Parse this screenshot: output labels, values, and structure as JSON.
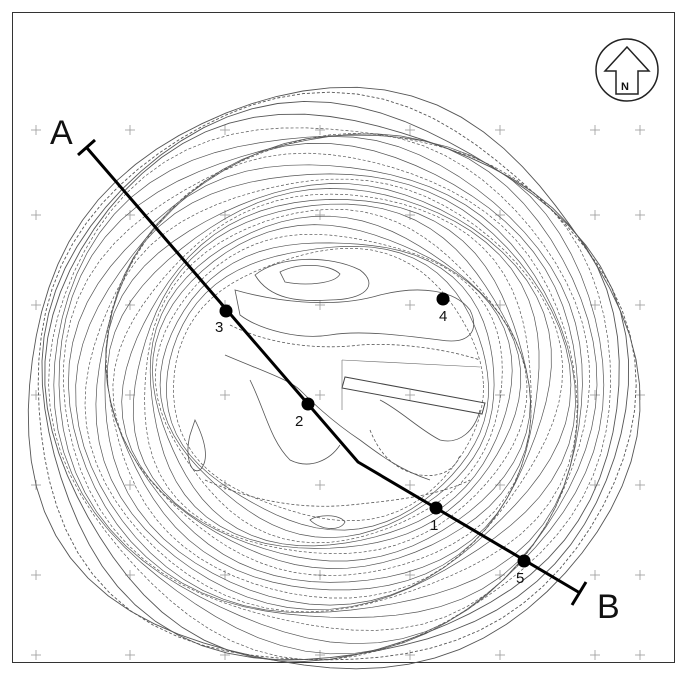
{
  "section": {
    "start_label": "A",
    "end_label": "B"
  },
  "compass": {
    "label": "N",
    "icon": "north-arrow-icon"
  },
  "points": [
    {
      "id": "3",
      "label": "3"
    },
    {
      "id": "2",
      "label": "2"
    },
    {
      "id": "4",
      "label": "4"
    },
    {
      "id": "1",
      "label": "1"
    },
    {
      "id": "5",
      "label": "5"
    }
  ],
  "colors": {
    "line": "#000000",
    "contour": "#555555",
    "grid_cross": "#9a9a9a"
  }
}
